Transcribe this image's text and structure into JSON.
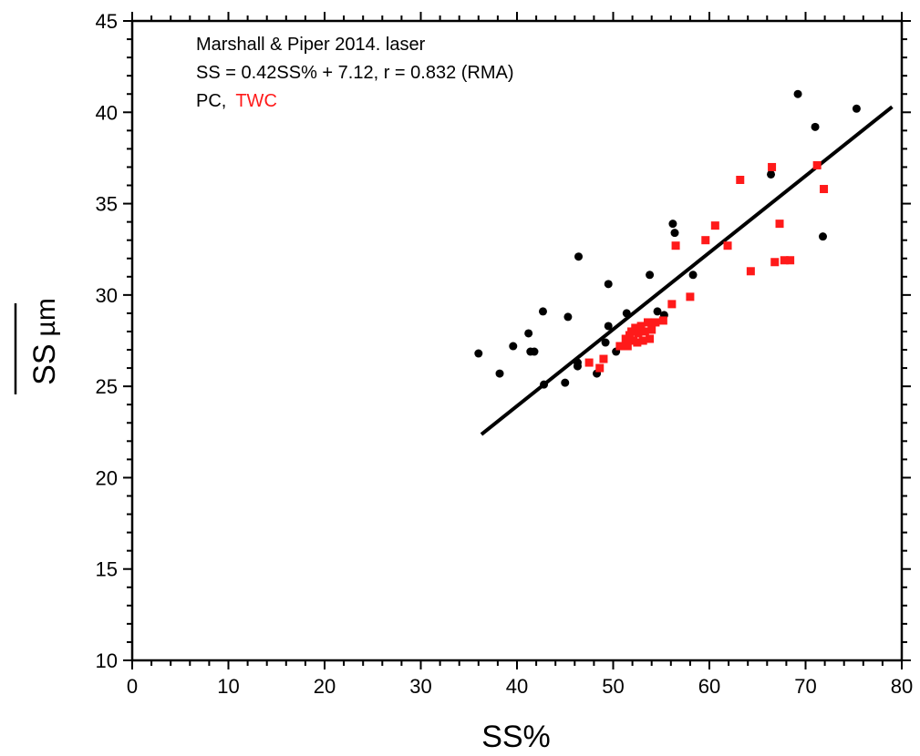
{
  "chart_data": {
    "type": "scatter",
    "xlabel": "SS%",
    "ylabel_main": "SS",
    "ylabel_unit": "µm",
    "xlim": [
      0,
      80
    ],
    "ylim": [
      10,
      45
    ],
    "x_ticks": [
      0,
      10,
      20,
      30,
      40,
      50,
      60,
      70,
      80
    ],
    "y_ticks": [
      10,
      15,
      20,
      25,
      30,
      35,
      40,
      45
    ],
    "x_tick_labels": [
      "0",
      "10",
      "20",
      "30",
      "40",
      "50",
      "60",
      "70",
      "80"
    ],
    "y_tick_labels": [
      "10",
      "15",
      "20",
      "25",
      "30",
      "35",
      "40",
      "45"
    ],
    "annotations": {
      "line1": "Marshall & Piper 2014. laser",
      "line2": "SS = 0.42SS% + 7.12,  r = 0.832  (RMA)",
      "line3_pc": "PC,",
      "line3_twc": "TWC"
    },
    "regression": {
      "slope": 0.42,
      "intercept": 7.12,
      "x_range": [
        36.3,
        79
      ]
    },
    "series": [
      {
        "name": "PC",
        "marker": "circle",
        "color": "#000000",
        "points": [
          [
            36,
            26.8
          ],
          [
            38.2,
            25.7
          ],
          [
            39.6,
            27.2
          ],
          [
            41.2,
            27.9
          ],
          [
            41.4,
            26.9
          ],
          [
            41.8,
            26.9
          ],
          [
            42.7,
            29.1
          ],
          [
            42.8,
            25.1
          ],
          [
            45,
            25.2
          ],
          [
            45.3,
            28.8
          ],
          [
            46.3,
            26.3
          ],
          [
            46.3,
            26.1
          ],
          [
            46.4,
            32.1
          ],
          [
            48.3,
            25.7
          ],
          [
            49.2,
            27.4
          ],
          [
            49.5,
            28.3
          ],
          [
            49.5,
            30.6
          ],
          [
            50.3,
            26.9
          ],
          [
            51.4,
            29
          ],
          [
            53.8,
            31.1
          ],
          [
            54.6,
            29.1
          ],
          [
            55.3,
            28.9
          ],
          [
            56.2,
            33.9
          ],
          [
            56.4,
            33.4
          ],
          [
            58.3,
            31.1
          ],
          [
            66.4,
            36.6
          ],
          [
            69.2,
            41
          ],
          [
            71,
            39.2
          ],
          [
            71.8,
            33.2
          ],
          [
            75.3,
            40.2
          ]
        ]
      },
      {
        "name": "TWC",
        "marker": "square",
        "color": "#ff1a1a",
        "points": [
          [
            47.5,
            26.3
          ],
          [
            48.6,
            26
          ],
          [
            49,
            26.5
          ],
          [
            50.7,
            27.2
          ],
          [
            51.3,
            27.6
          ],
          [
            51.5,
            27.2
          ],
          [
            51.7,
            27.8
          ],
          [
            51.9,
            28
          ],
          [
            52.1,
            27.5
          ],
          [
            52.3,
            28.2
          ],
          [
            52.5,
            27.4
          ],
          [
            52.6,
            27.9
          ],
          [
            52.9,
            28.3
          ],
          [
            53.1,
            27.5
          ],
          [
            53.3,
            28
          ],
          [
            53.6,
            28.5
          ],
          [
            53.8,
            27.6
          ],
          [
            54,
            28.1
          ],
          [
            54.4,
            28.5
          ],
          [
            55.2,
            28.6
          ],
          [
            56.1,
            29.5
          ],
          [
            56.5,
            32.7
          ],
          [
            58,
            29.9
          ],
          [
            59.6,
            33
          ],
          [
            60.6,
            33.8
          ],
          [
            61.9,
            32.7
          ],
          [
            63.2,
            36.3
          ],
          [
            64.3,
            31.3
          ],
          [
            66.5,
            37
          ],
          [
            66.8,
            31.8
          ],
          [
            67.3,
            33.9
          ],
          [
            67.8,
            31.9
          ],
          [
            68.4,
            31.9
          ],
          [
            71.2,
            37.1
          ],
          [
            71.9,
            35.8
          ]
        ]
      }
    ]
  }
}
